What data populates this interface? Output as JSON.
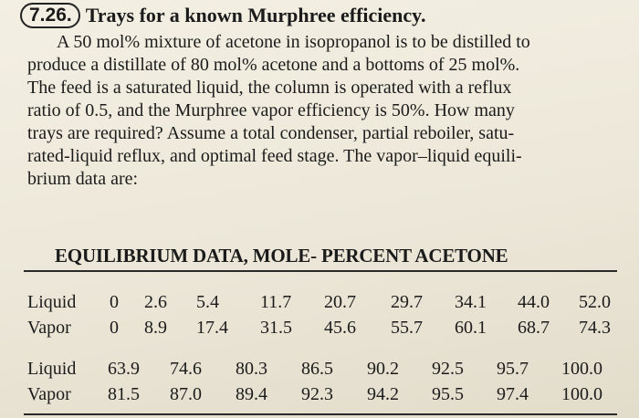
{
  "problem": {
    "number": "7.26.",
    "title": "Trays for a known Murphree efficiency."
  },
  "body_lines": [
    "A 50 mol% mixture of acetone in isopropanol is to be distilled to",
    "produce a distillate of 80 mol% acetone and a bottoms of 25 mol%.",
    "The feed is a saturated liquid, the column is operated with a reflux",
    "ratio of 0.5, and the Murphree vapor efficiency is 50%. How many",
    "trays are required? Assume a total condenser, partial reboiler, satu-",
    "rated-liquid reflux, and optimal feed stage. The vapor–liquid equili-",
    "brium data are:"
  ],
  "table": {
    "title": "EQUILIBRIUM DATA, MOLE- PERCENT ACETONE",
    "rows": [
      {
        "label": "Liquid",
        "values": [
          "0",
          "2.6",
          "5.4",
          "11.7",
          "20.7",
          "29.7",
          "34.1",
          "44.0",
          "52.0"
        ]
      },
      {
        "label": "Vapor",
        "values": [
          "0",
          "8.9",
          "17.4",
          "31.5",
          "45.6",
          "55.7",
          "60.1",
          "68.7",
          "74.3"
        ]
      },
      {
        "label": "Liquid",
        "values": [
          "63.9",
          "74.6",
          "80.3",
          "86.5",
          "90.2",
          "92.5",
          "95.7",
          "100.0"
        ]
      },
      {
        "label": "Vapor",
        "values": [
          "81.5",
          "87.0",
          "89.4",
          "92.3",
          "94.2",
          "95.5",
          "97.4",
          "100.0"
        ]
      }
    ]
  }
}
